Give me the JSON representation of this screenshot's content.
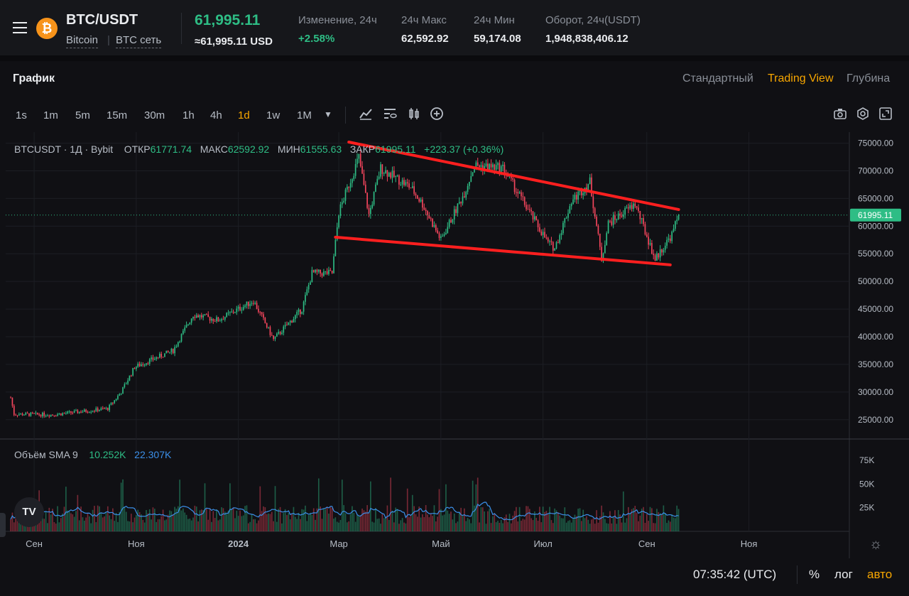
{
  "header": {
    "pair": "BTC/USDT",
    "coin_name": "Bitcoin",
    "network": "BTC сеть",
    "last_price": "61,995.11",
    "last_price_usd": "≈61,995.11 USD",
    "stats": [
      {
        "label": "Изменение, 24ч",
        "value": "+2.58%"
      },
      {
        "label": "24ч Макс",
        "value": "62,592.92"
      },
      {
        "label": "24ч Мин",
        "value": "59,174.08"
      },
      {
        "label": "Оборот, 24ч(USDT)",
        "value": "1,948,838,406.12"
      }
    ]
  },
  "panel": {
    "title": "График",
    "view_tabs": [
      "Стандартный",
      "Trading View",
      "Глубина"
    ],
    "active_view": "Trading View"
  },
  "toolbar": {
    "timeframes": [
      "1s",
      "1m",
      "5m",
      "15m",
      "30m",
      "1h",
      "4h",
      "1d",
      "1w",
      "1M"
    ],
    "active_timeframe": "1d",
    "more_icon": "caret-down-icon",
    "tools": [
      "indicator-icon",
      "eye-list-icon",
      "candle-type-icon",
      "add-icon"
    ],
    "right_tools": [
      "camera-icon",
      "settings-hex-icon",
      "fullscreen-icon"
    ]
  },
  "legend": {
    "symbol": "BTCUSDT · 1Д · Bybit",
    "open_label": "ОТКР",
    "open": "61771.74",
    "high_label": "МАКС",
    "high": "62592.92",
    "low_label": "МИН",
    "low": "61555.63",
    "close_label": "ЗАКР",
    "close": "61995.11",
    "change": "+223.37 (+0.36%)"
  },
  "volume_legend": {
    "label": "Объём SMA 9",
    "value1": "10.252K",
    "value2": "22.307K"
  },
  "footer": {
    "time": "07:35:42 (UTC)",
    "percent": "%",
    "log": "лог",
    "auto": "авто"
  },
  "colors": {
    "up": "#2ebd85",
    "down": "#f6465d",
    "accent": "#f7a600",
    "trendline": "#ff1f1f",
    "volume_sma": "#3b8fe8"
  },
  "chart_data": {
    "type": "candlestick",
    "y_ticks": [
      75000,
      70000,
      65000,
      60000,
      55000,
      50000,
      45000,
      40000,
      35000,
      30000,
      25000
    ],
    "y_tick_labels": [
      "75000.00",
      "70000.00",
      "65000.00",
      "60000.00",
      "55000.00",
      "50000.00",
      "45000.00",
      "40000.00",
      "35000.00",
      "30000.00",
      "25000.00"
    ],
    "last_price_label": "61995.11",
    "x_tick_labels": [
      "Сен",
      "Ноя",
      "2024",
      "Мар",
      "Май",
      "Июл",
      "Сен",
      "Ноя"
    ],
    "volume_ticks": [
      75000,
      50000,
      25000
    ],
    "volume_tick_labels": [
      "75K",
      "50K",
      "25K"
    ],
    "close_anchors": [
      [
        "2023-08-18",
        29000
      ],
      [
        "2023-08-20",
        26000
      ],
      [
        "2023-09-12",
        25900
      ],
      [
        "2023-10-15",
        27000
      ],
      [
        "2023-10-23",
        30000
      ],
      [
        "2023-10-31",
        34500
      ],
      [
        "2023-11-23",
        37500
      ],
      [
        "2023-12-05",
        44000
      ],
      [
        "2023-12-20",
        43000
      ],
      [
        "2024-01-10",
        46500
      ],
      [
        "2024-01-22",
        39500
      ],
      [
        "2024-02-08",
        45000
      ],
      [
        "2024-02-14",
        51500
      ],
      [
        "2024-02-26",
        51500
      ],
      [
        "2024-03-01",
        62500
      ],
      [
        "2024-03-13",
        72500
      ],
      [
        "2024-03-19",
        62000
      ],
      [
        "2024-03-26",
        70500
      ],
      [
        "2024-04-13",
        67000
      ],
      [
        "2024-04-20",
        64000
      ],
      [
        "2024-05-01",
        57500
      ],
      [
        "2024-05-15",
        66000
      ],
      [
        "2024-05-21",
        71000
      ],
      [
        "2024-06-07",
        70500
      ],
      [
        "2024-06-18",
        65000
      ],
      [
        "2024-07-04",
        57000
      ],
      [
        "2024-07-08",
        56000
      ],
      [
        "2024-07-18",
        64500
      ],
      [
        "2024-07-29",
        68000
      ],
      [
        "2024-08-05",
        54000
      ],
      [
        "2024-08-09",
        60500
      ],
      [
        "2024-08-25",
        64000
      ],
      [
        "2024-09-06",
        54000
      ],
      [
        "2024-09-16",
        58500
      ],
      [
        "2024-09-20",
        61995
      ]
    ],
    "trendlines": [
      {
        "name": "upper",
        "from": [
          "2024-03-07",
          75200
        ],
        "to": [
          "2024-09-20",
          63000
        ]
      },
      {
        "name": "lower",
        "from": [
          "2024-02-28",
          58000
        ],
        "to": [
          "2024-09-15",
          53000
        ]
      }
    ],
    "ylim": [
      21500,
      77000
    ],
    "xlim": [
      "2023-08-15",
      "2024-12-31"
    ]
  }
}
